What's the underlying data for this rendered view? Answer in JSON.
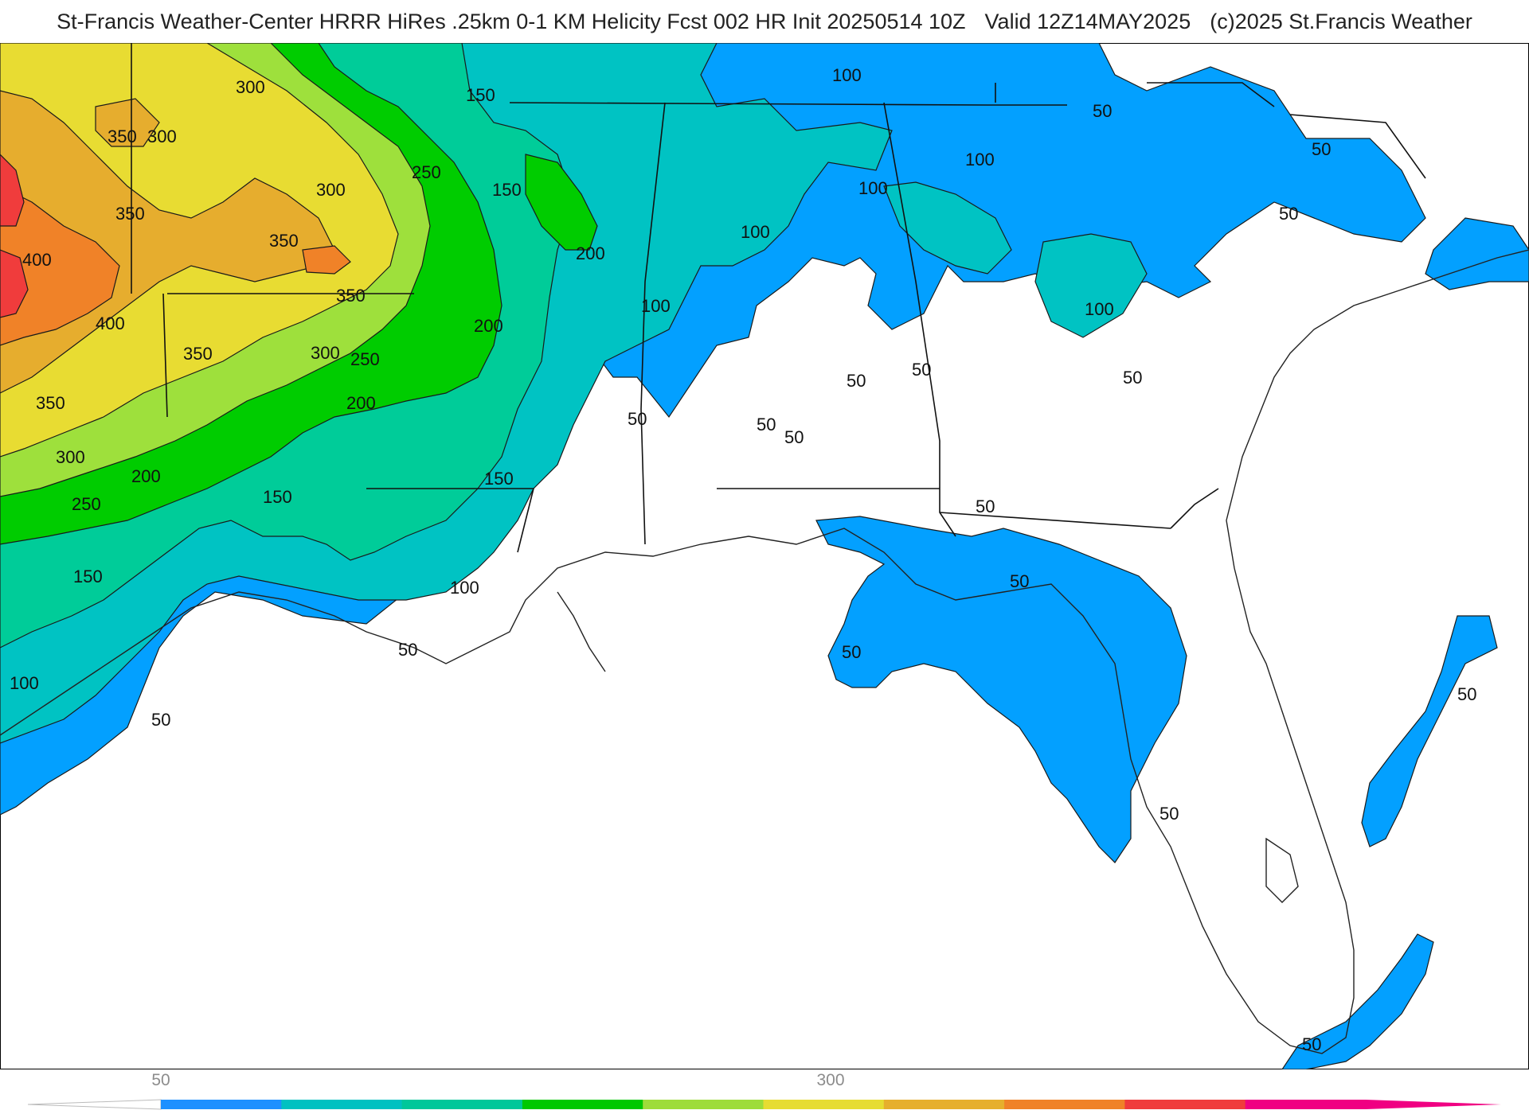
{
  "header": {
    "title": "St-Francis Weather-Center HRRR HiRes .25km 0-1 KM Helicity Fcst 002 HR Init 20250514 10Z",
    "valid": "Valid 12Z14MAY2025",
    "copyright": "(c)2025 St.Francis Weather"
  },
  "map": {
    "field": "0-1 KM Helicity",
    "background": "#ffffff",
    "contour_labels": {
      "l1": "400",
      "l2": "400",
      "l3": "350",
      "l4": "350",
      "l5": "350",
      "l6": "350",
      "l7": "350",
      "l8": "350",
      "l9": "300",
      "l10": "300",
      "l11": "300",
      "l12": "300",
      "l13": "250",
      "l14": "250",
      "l15": "250",
      "l16": "200",
      "l17": "200",
      "l18": "200",
      "l19": "200",
      "l20": "150",
      "l21": "150",
      "l22": "150",
      "l23": "150",
      "l24": "150",
      "l25": "100",
      "l26": "100",
      "l27": "100",
      "l28": "100",
      "l29": "100",
      "l30": "100",
      "l31": "100",
      "l32": "100",
      "l33": "50",
      "l34": "50",
      "l35": "50",
      "l36": "50",
      "l37": "50",
      "l38": "50",
      "l39": "50",
      "l40": "50",
      "l41": "50",
      "l42": "50",
      "l43": "50",
      "l44": "50",
      "l45": "50",
      "l46": "50",
      "l47": "50",
      "l48": "350",
      "l49": "300"
    }
  },
  "colorbar": {
    "tick_labels": [
      "50",
      "300"
    ],
    "colors": [
      "#1e90ff",
      "#00c1c1",
      "#00c79a",
      "#00c800",
      "#9edc3a",
      "#e6dc32",
      "#e6af2d",
      "#f08228",
      "#f03c3c",
      "#f00082"
    ]
  }
}
